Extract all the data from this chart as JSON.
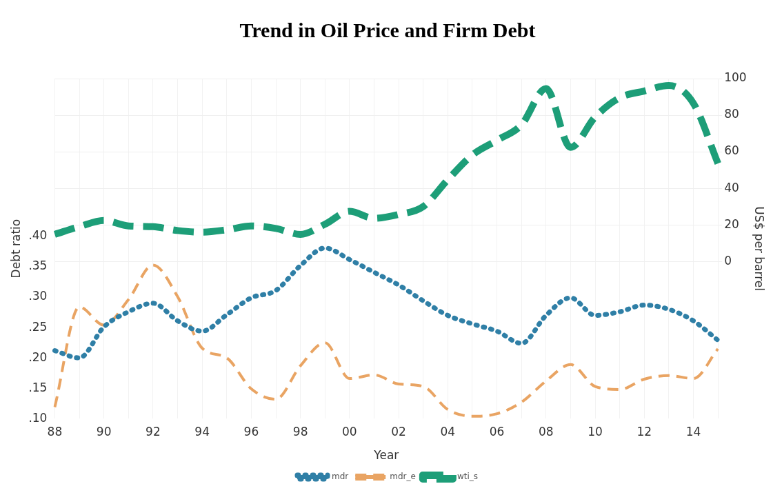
{
  "chart_data": {
    "type": "line",
    "title": "Trend in Oil Price and Firm Debt",
    "xlabel": "Year",
    "ylabel": "Debt ratio",
    "y2label": "US$ per barrel",
    "categories": [
      "88",
      null,
      "90",
      null,
      "92",
      null,
      "94",
      null,
      "96",
      null,
      "98",
      null,
      "00",
      null,
      "02",
      null,
      "04",
      null,
      "06",
      null,
      "08",
      null,
      "10",
      null,
      "12",
      null,
      "14",
      null
    ],
    "series": [
      {
        "name": "mdr",
        "color": "#2f7fa6",
        "line_style": "dotted",
        "values": [
          0.212,
          0.2,
          0.251,
          0.276,
          0.29,
          0.261,
          0.244,
          0.271,
          0.299,
          0.311,
          0.352,
          0.381,
          0.362,
          0.341,
          0.32,
          0.294,
          0.27,
          0.256,
          0.244,
          0.224,
          0.27,
          0.299,
          0.27,
          0.276,
          0.287,
          0.28,
          0.261,
          0.229
        ]
      },
      {
        "name": "mdr_e",
        "color": "#e9a463",
        "line_style": "dashed",
        "values": [
          0.119,
          0.284,
          0.254,
          0.296,
          0.353,
          0.301,
          0.216,
          0.2,
          0.149,
          0.132,
          0.187,
          0.225,
          0.166,
          0.172,
          0.157,
          0.153,
          0.115,
          0.104,
          0.108,
          0.127,
          0.162,
          0.189,
          0.153,
          0.148,
          0.165,
          0.171,
          0.166,
          0.215
        ]
      },
      {
        "name": "wti_s",
        "color": "#1d9e78",
        "line_style": "dashed",
        "axis": "y2",
        "values": [
          14.8,
          19,
          22.4,
          19.4,
          19,
          16.9,
          16,
          17.3,
          19.4,
          18,
          14.8,
          20.3,
          27.4,
          23.6,
          25.7,
          30,
          44.7,
          58.2,
          66.2,
          74.7,
          94.5,
          62.4,
          79,
          89.5,
          93.2,
          96.2,
          86.5,
          53.6
        ]
      }
    ],
    "ylim": [
      0.1,
      0.66
    ],
    "yticks": [
      {
        "value": 0.1,
        "label": ".10"
      },
      {
        "value": 0.15,
        "label": ".15"
      },
      {
        "value": 0.2,
        "label": ".20"
      },
      {
        "value": 0.25,
        "label": ".25"
      },
      {
        "value": 0.3,
        "label": ".30"
      },
      {
        "value": 0.35,
        "label": ".35"
      },
      {
        "value": 0.4,
        "label": ".40"
      }
    ],
    "y2lim": [
      -86,
      100
    ],
    "y2ticks": [
      0,
      20,
      40,
      60,
      80,
      100
    ],
    "grid": true,
    "legend": "bottom",
    "marker": "none"
  }
}
